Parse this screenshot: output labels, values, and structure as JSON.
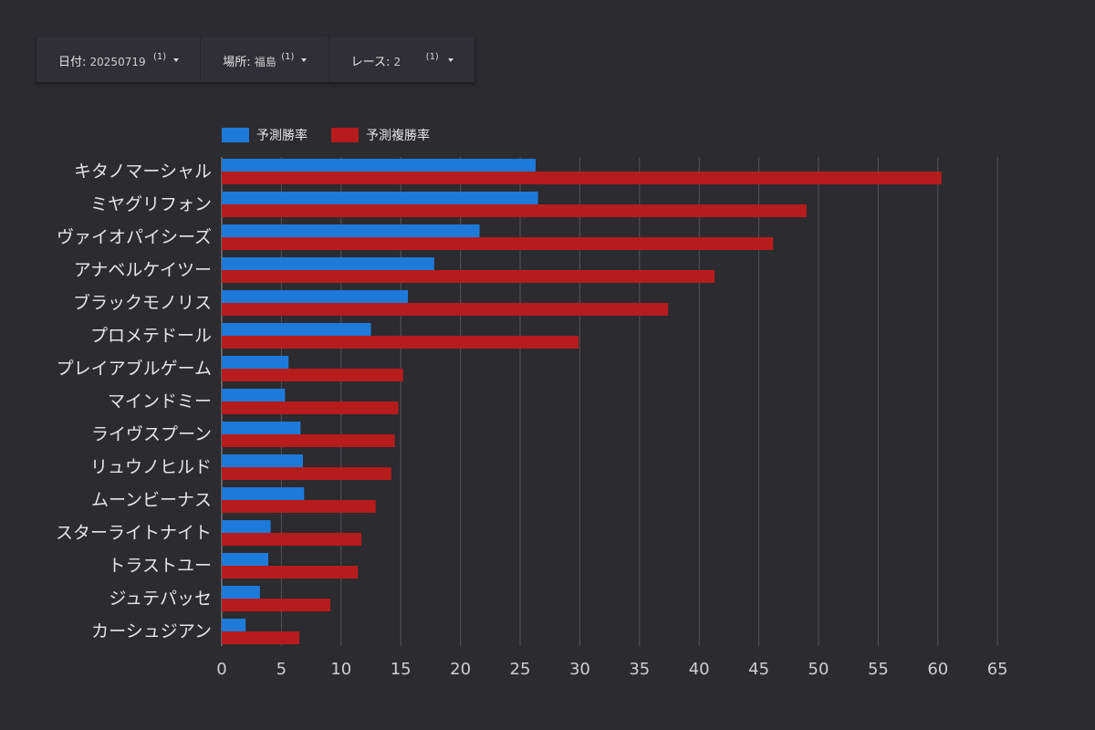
{
  "filters": [
    {
      "label": "日付",
      "value": "20250719",
      "count": "(1)"
    },
    {
      "label": "場所",
      "value": "福島",
      "count": "(1)"
    },
    {
      "label": "レース",
      "value": "2",
      "count": "(1)"
    }
  ],
  "colors": {
    "win": "#1e7ad9",
    "place": "#b71c1c",
    "grid": "#55555b"
  },
  "chart_data": {
    "type": "bar",
    "orientation": "horizontal",
    "title": "",
    "xlabel": "",
    "ylabel": "",
    "xlim": [
      0,
      65
    ],
    "xticks": [
      0,
      5,
      10,
      15,
      20,
      25,
      30,
      35,
      40,
      45,
      50,
      55,
      60,
      65
    ],
    "grid": true,
    "legend": "top-left",
    "categories": [
      "キタノマーシャル",
      "ミヤグリフォン",
      "ヴァイオパイシーズ",
      "アナベルケイツー",
      "ブラックモノリス",
      "プロメテドール",
      "プレイアブルゲーム",
      "マインドミー",
      "ライヴスプーン",
      "リュウノヒルド",
      "ムーンビーナス",
      "スターライトナイト",
      "トラストユー",
      "ジュテパッセ",
      "カーシュジアン"
    ],
    "series": [
      {
        "name": "予測勝率",
        "color": "#1e7ad9",
        "values": [
          26.3,
          26.5,
          21.6,
          17.8,
          15.6,
          12.5,
          5.6,
          5.3,
          6.6,
          6.8,
          6.9,
          4.1,
          3.9,
          3.2,
          2.0
        ]
      },
      {
        "name": "予測複勝率",
        "color": "#b71c1c",
        "values": [
          60.3,
          49.0,
          46.2,
          41.3,
          37.4,
          29.9,
          15.2,
          14.8,
          14.5,
          14.2,
          12.9,
          11.7,
          11.4,
          9.1,
          6.5
        ]
      }
    ]
  }
}
